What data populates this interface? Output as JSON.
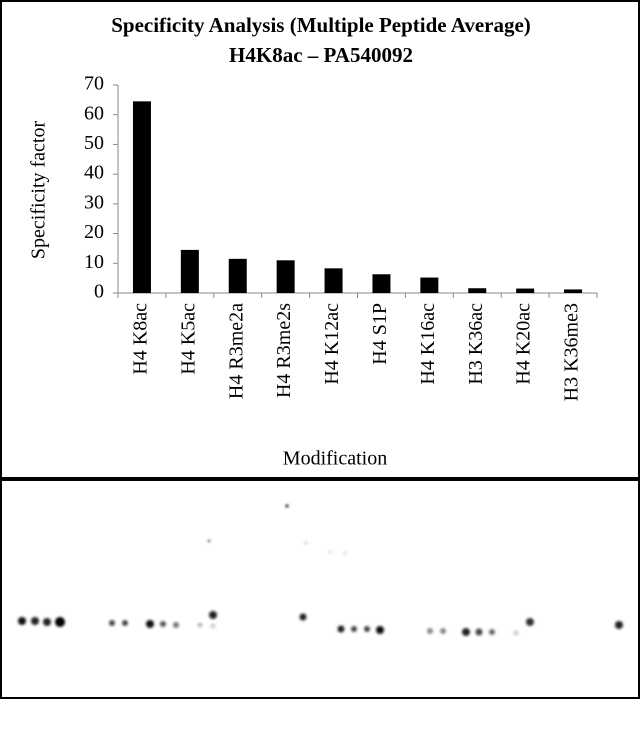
{
  "chart_data": {
    "type": "bar",
    "title": "Specificity Analysis  (Multiple Peptide Average)",
    "subtitle": "H4K8ac – PA540092",
    "x_label": "Modification",
    "y_label": "Specificity factor",
    "categories": [
      "H4 K8ac",
      "H4 K5ac",
      "H4 R3me2a",
      "H4 R3me2s",
      "H4 K12ac",
      "H4 S1P",
      "H4 K16ac",
      "H3 K36ac",
      "H4 K20ac",
      "H3 K36me3"
    ],
    "values": [
      64.5,
      14.5,
      11.5,
      11,
      8.3,
      6.3,
      5.2,
      1.6,
      1.5,
      1.2
    ],
    "color": "#000000",
    "ylim": [
      0,
      70
    ],
    "yticks": [
      0,
      10,
      20,
      30,
      40,
      50,
      60,
      70
    ],
    "grid": false
  }
}
